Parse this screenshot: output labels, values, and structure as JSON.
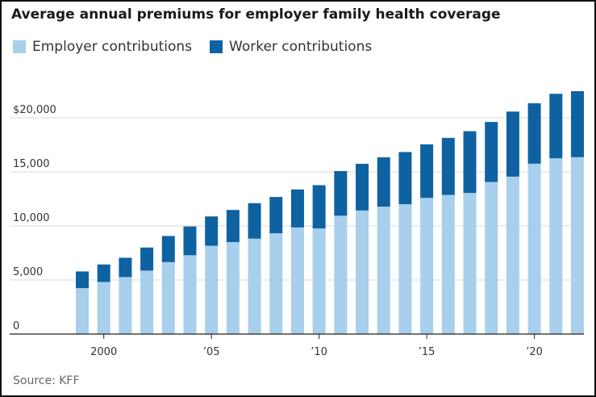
{
  "colors": {
    "employer": "#a8cfec",
    "worker": "#0f62a2",
    "grid": "#d8d8d8",
    "axis": "#222222"
  },
  "chart_data": {
    "type": "bar",
    "stacked": true,
    "title": "Average annual premiums for employer family health coverage",
    "source": "Source: KFF",
    "x": [
      1999,
      2000,
      2001,
      2002,
      2003,
      2004,
      2005,
      2006,
      2007,
      2008,
      2009,
      2010,
      2011,
      2012,
      2013,
      2014,
      2015,
      2016,
      2017,
      2018,
      2019,
      2020,
      2021,
      2022
    ],
    "series": [
      {
        "name": "Employer contributions",
        "values": [
          4247,
          4819,
          5269,
          5866,
          6657,
          7289,
          8167,
          8508,
          8824,
          9325,
          9860,
          9773,
          10944,
          11429,
          11786,
          12011,
          12591,
          12865,
          13049,
          14069,
          14561,
          15754,
          16253,
          16357
        ]
      },
      {
        "name": "Worker contributions",
        "values": [
          1543,
          1619,
          1787,
          2137,
          2412,
          2661,
          2713,
          2973,
          3281,
          3354,
          3515,
          3997,
          4129,
          4316,
          4565,
          4823,
          4955,
          5277,
          5714,
          5547,
          6015,
          5588,
          5969,
          6106
        ]
      }
    ],
    "y_ticks": [
      {
        "value": 0,
        "label": "0"
      },
      {
        "value": 5000,
        "label": "5,000"
      },
      {
        "value": 10000,
        "label": "10,000"
      },
      {
        "value": 15000,
        "label": "15,000"
      },
      {
        "value": 20000,
        "label": "$20,000"
      }
    ],
    "x_ticks": [
      {
        "value": 2000,
        "label": "2000"
      },
      {
        "value": 2005,
        "label": "’05"
      },
      {
        "value": 2010,
        "label": "’10"
      },
      {
        "value": 2015,
        "label": "’15"
      },
      {
        "value": 2020,
        "label": "’20"
      }
    ],
    "ylim": [
      0,
      22500
    ],
    "grid": true,
    "legend_position": "top-left"
  }
}
